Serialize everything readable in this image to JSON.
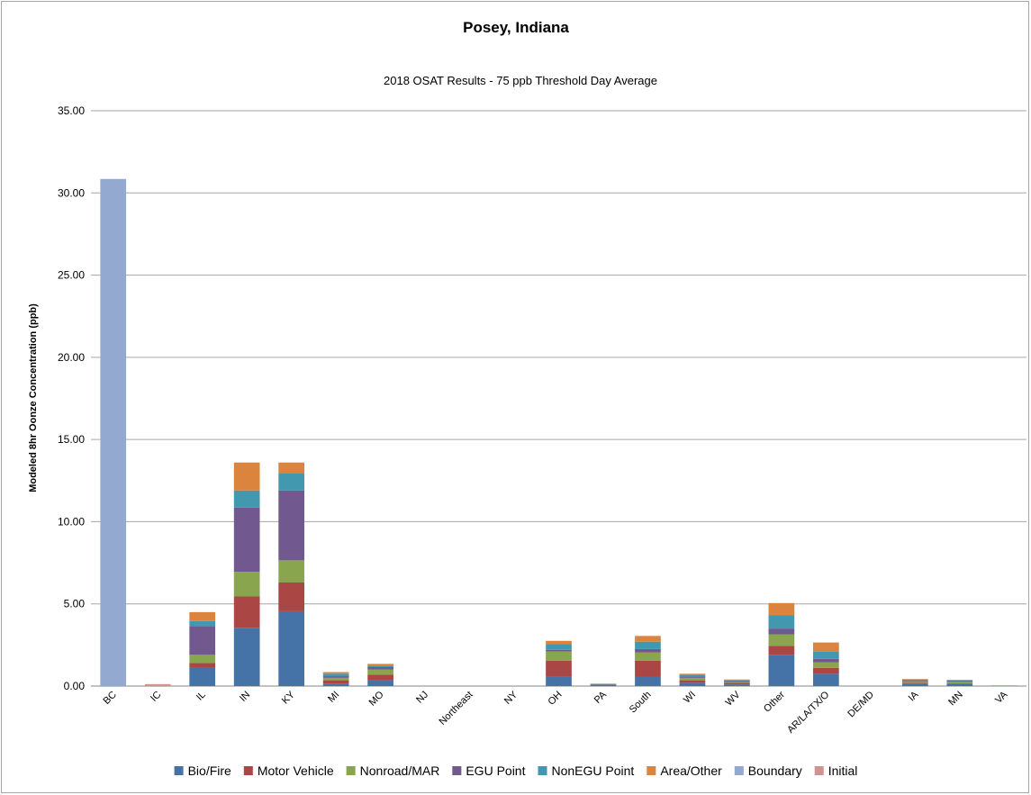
{
  "chart_data": {
    "type": "bar",
    "stacked": true,
    "title": "Posey, Indiana",
    "subtitle": "2018 OSAT Results - 75 ppb Threshold Day Average",
    "ylabel": "Modeled 8hr Oonze Concentration (ppb)",
    "xlabel": "",
    "ylim": [
      0,
      35
    ],
    "yticks": [
      "0.00",
      "5.00",
      "10.00",
      "15.00",
      "20.00",
      "25.00",
      "30.00",
      "35.00"
    ],
    "grid": true,
    "legend_position": "bottom",
    "categories": [
      "BC",
      "IC",
      "IL",
      "IN",
      "KY",
      "MI",
      "MO",
      "NJ",
      "Northeast",
      "NY",
      "OH",
      "PA",
      "South",
      "WI",
      "WV",
      "Other",
      "AR/LA/TX/O",
      "DE/MD",
      "IA",
      "MN",
      "VA"
    ],
    "series": [
      {
        "name": "Bio/Fire",
        "color": "#4572a7",
        "values": [
          0,
          0,
          1.1,
          3.55,
          4.55,
          0.15,
          0.35,
          0,
          0,
          0,
          0.6,
          0.03,
          0.55,
          0.2,
          0.1,
          1.9,
          0.75,
          0,
          0.15,
          0.12,
          0
        ]
      },
      {
        "name": "Motor Vehicle",
        "color": "#aa4643",
        "values": [
          0,
          0,
          0.3,
          1.9,
          1.75,
          0.2,
          0.35,
          0,
          0,
          0,
          0.95,
          0.03,
          1.0,
          0.15,
          0.1,
          0.55,
          0.35,
          0,
          0.05,
          0.05,
          0
        ]
      },
      {
        "name": "Nonroad/MAR",
        "color": "#89a54e",
        "values": [
          0,
          0,
          0.5,
          1.5,
          1.35,
          0.15,
          0.3,
          0,
          0,
          0,
          0.55,
          0.02,
          0.5,
          0.15,
          0.05,
          0.7,
          0.35,
          0,
          0.1,
          0.08,
          0
        ]
      },
      {
        "name": "EGU Point",
        "color": "#71588f",
        "values": [
          0,
          0,
          1.75,
          3.9,
          4.25,
          0.1,
          0.15,
          0,
          0,
          0,
          0.1,
          0.02,
          0.2,
          0.08,
          0.05,
          0.35,
          0.2,
          0,
          0.05,
          0.05,
          0
        ]
      },
      {
        "name": "NonEGU Point",
        "color": "#4198af",
        "values": [
          0,
          0,
          0.3,
          1.05,
          1.05,
          0.15,
          0.1,
          0,
          0,
          0,
          0.35,
          0.02,
          0.45,
          0.1,
          0.05,
          0.8,
          0.45,
          0,
          0.05,
          0.05,
          0
        ]
      },
      {
        "name": "Area/Other",
        "color": "#db843d",
        "values": [
          0,
          0,
          0.55,
          1.7,
          0.65,
          0.1,
          0.1,
          0,
          0,
          0,
          0.2,
          0.03,
          0.35,
          0.07,
          0.05,
          0.75,
          0.55,
          0,
          0.03,
          0.03,
          0
        ]
      },
      {
        "name": "Boundary",
        "color": "#93a9cf",
        "values": [
          30.85,
          0,
          0,
          0,
          0,
          0,
          0,
          0,
          0,
          0,
          0,
          0,
          0,
          0,
          0,
          0,
          0,
          0,
          0,
          0,
          0
        ]
      },
      {
        "name": "Initial",
        "color": "#d19392",
        "values": [
          0,
          0.12,
          0,
          0,
          0,
          0,
          0,
          0,
          0,
          0,
          0,
          0,
          0,
          0,
          0,
          0,
          0,
          0,
          0,
          0,
          0.05
        ]
      }
    ]
  }
}
